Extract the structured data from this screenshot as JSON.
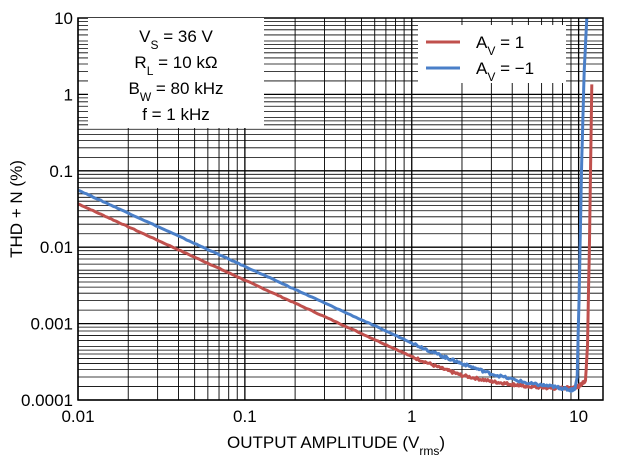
{
  "chart_data": {
    "type": "line",
    "xlabel": {
      "main": "OUTPUT AMPLITUDE (V",
      "sub": "rms",
      "close": ")"
    },
    "ylabel": "THD + N (%)",
    "x_scale": "log",
    "y_scale": "log",
    "xlim": [
      0.01,
      14
    ],
    "ylim": [
      0.0001,
      10
    ],
    "x_ticks": [
      {
        "value": 0.01,
        "label": "0.01"
      },
      {
        "value": 0.1,
        "label": "0.1"
      },
      {
        "value": 1,
        "label": "1"
      },
      {
        "value": 10,
        "label": "10"
      }
    ],
    "y_ticks": [
      {
        "value": 0.0001,
        "label": "0.0001"
      },
      {
        "value": 0.001,
        "label": "0.001"
      },
      {
        "value": 0.01,
        "label": "0.01"
      },
      {
        "value": 0.1,
        "label": "0.1"
      },
      {
        "value": 1,
        "label": "1"
      },
      {
        "value": 10,
        "label": "10"
      }
    ],
    "grid": true,
    "conditions": [
      {
        "main": "V",
        "sub": "S",
        "rest": " = 36 V"
      },
      {
        "main": "R",
        "sub": "L",
        "rest": " = 10 kΩ"
      },
      {
        "main": "B",
        "sub": "W",
        "rest": " = 80 kHz"
      },
      {
        "main": "f",
        "sub": "",
        "rest": " = 1 kHz"
      }
    ],
    "legend_position": "top-right",
    "series": [
      {
        "legend": {
          "main": "A",
          "sub": "V",
          "rest": " = 1"
        },
        "color": "#c0504d",
        "points": [
          [
            0.01,
            0.037
          ],
          [
            0.02,
            0.0185
          ],
          [
            0.05,
            0.0074
          ],
          [
            0.1,
            0.0037
          ],
          [
            0.2,
            0.00185
          ],
          [
            0.5,
            0.00074
          ],
          [
            1,
            0.00037
          ],
          [
            1.5,
            0.00026
          ],
          [
            2,
            0.00021
          ],
          [
            3,
            0.000175
          ],
          [
            4,
            0.00016
          ],
          [
            5,
            0.00015
          ],
          [
            7,
            0.000142
          ],
          [
            9,
            0.000145
          ],
          [
            10,
            0.00015
          ],
          [
            11,
            0.00018
          ],
          [
            11.3,
            0.0005
          ],
          [
            11.6,
            0.01
          ],
          [
            12,
            1.35
          ]
        ]
      },
      {
        "legend": {
          "main": "A",
          "sub": "V",
          "rest": " = −1"
        },
        "color": "#4a7fc8",
        "points": [
          [
            0.01,
            0.056
          ],
          [
            0.02,
            0.028
          ],
          [
            0.05,
            0.0112
          ],
          [
            0.1,
            0.0056
          ],
          [
            0.2,
            0.0028
          ],
          [
            0.5,
            0.00112
          ],
          [
            1,
            0.00056
          ],
          [
            1.5,
            0.00038
          ],
          [
            2,
            0.0003
          ],
          [
            3,
            0.00022
          ],
          [
            5,
            0.000165
          ],
          [
            7,
            0.00015
          ],
          [
            9,
            0.000135
          ],
          [
            9.5,
            0.00014
          ],
          [
            9.8,
            0.0002
          ],
          [
            10.1,
            0.003
          ],
          [
            10.4,
            0.1
          ],
          [
            10.8,
            2
          ],
          [
            11.2,
            10
          ]
        ]
      }
    ]
  }
}
